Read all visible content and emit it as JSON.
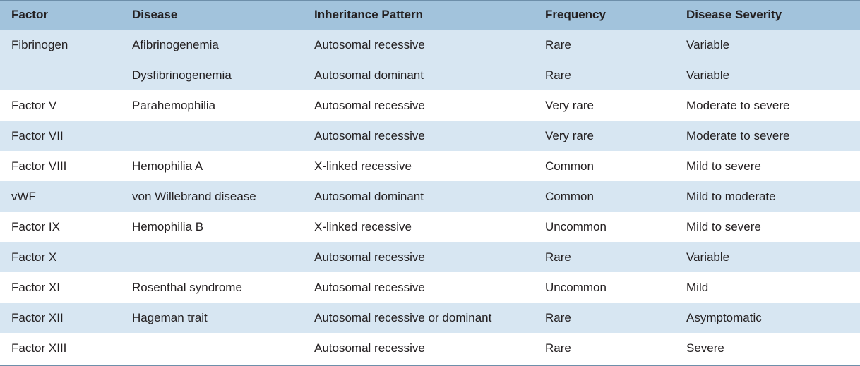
{
  "table": {
    "columns": [
      "Factor",
      "Disease",
      "Inheritance Pattern",
      "Frequency",
      "Disease Severity"
    ],
    "rows": [
      {
        "shade": "light",
        "cells": [
          "Fibrinogen",
          "Afibrinogenemia",
          "Autosomal recessive",
          "Rare",
          "Variable"
        ]
      },
      {
        "shade": "light",
        "cells": [
          "",
          "Dysfibrinogenemia",
          "Autosomal dominant",
          "Rare",
          "Variable"
        ]
      },
      {
        "shade": "white",
        "cells": [
          "Factor V",
          "Parahemophilia",
          "Autosomal recessive",
          "Very rare",
          "Moderate to severe"
        ]
      },
      {
        "shade": "light",
        "cells": [
          "Factor VII",
          "",
          "Autosomal recessive",
          "Very rare",
          "Moderate to severe"
        ]
      },
      {
        "shade": "white",
        "cells": [
          "Factor VIII",
          "Hemophilia A",
          "X-linked recessive",
          "Common",
          "Mild to severe"
        ]
      },
      {
        "shade": "light",
        "cells": [
          "vWF",
          "von Willebrand disease",
          "Autosomal dominant",
          "Common",
          "Mild to moderate"
        ]
      },
      {
        "shade": "white",
        "cells": [
          "Factor IX",
          "Hemophilia B",
          "X-linked recessive",
          "Uncommon",
          "Mild to severe"
        ]
      },
      {
        "shade": "light",
        "cells": [
          "Factor X",
          "",
          "Autosomal recessive",
          "Rare",
          "Variable"
        ]
      },
      {
        "shade": "white",
        "cells": [
          "Factor XI",
          "Rosenthal syndrome",
          "Autosomal recessive",
          "Uncommon",
          "Mild"
        ]
      },
      {
        "shade": "light",
        "cells": [
          "Factor XII",
          "Hageman trait",
          "Autosomal recessive or dominant",
          "Rare",
          "Asymptomatic"
        ]
      },
      {
        "shade": "white",
        "cells": [
          "Factor XIII",
          "",
          "Autosomal recessive",
          "Rare",
          "Severe"
        ]
      }
    ]
  },
  "colors": {
    "header_bg": "#a2c3dc",
    "row_light": "#d7e6f2",
    "row_white": "#ffffff",
    "rule": "#41617d"
  }
}
